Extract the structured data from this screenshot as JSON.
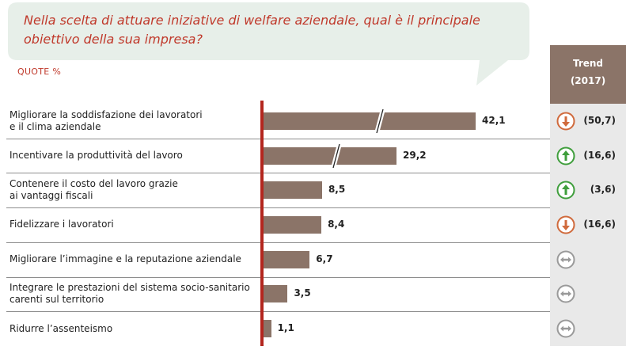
{
  "question": "Nella scelta di attuare iniziative di welfare aziendale, qual è il principale obiettivo della sua impresa?",
  "unit_label": "QUOTE %",
  "trend_header": {
    "line1": "Trend",
    "line2": "(2017)"
  },
  "colors": {
    "bar": "#8b7468",
    "axis": "#b3261e",
    "up": "#3f9e3c",
    "down": "#d06a3c",
    "neutral": "#9a9a9a",
    "bubble": "#e7efe9"
  },
  "chart_data": {
    "type": "bar",
    "orientation": "horizontal",
    "categories": [
      "Migliorare la soddisfazione dei lavoratori e il clima aziendale",
      "Incentivare la produttività del lavoro",
      "Contenere il costo del lavoro grazie ai vantaggi fiscali",
      "Fidelizzare i lavoratori",
      "Migliorare l’immagine e la reputazione aziendale",
      "Integrare le prestazioni del sistema socio-sanitario carenti sul territorio",
      "Ridurre l’assenteismo"
    ],
    "values": [
      42.1,
      29.2,
      8.5,
      8.4,
      6.7,
      3.5,
      1.1
    ],
    "value_labels": [
      "42,1",
      "29,2",
      "8,5",
      "8,4",
      "6,7",
      "3,5",
      "1,1"
    ],
    "broken_bars": [
      true,
      true,
      false,
      false,
      false,
      false,
      false
    ],
    "trend": [
      {
        "direction": "down",
        "value": "(50,7)"
      },
      {
        "direction": "up",
        "value": "(16,6)"
      },
      {
        "direction": "up",
        "value": "(3,6)"
      },
      {
        "direction": "down",
        "value": "(16,6)"
      },
      {
        "direction": "neutral",
        "value": ""
      },
      {
        "direction": "neutral",
        "value": ""
      },
      {
        "direction": "neutral",
        "value": ""
      }
    ]
  },
  "rows": [
    {
      "line1": "Migliorare la soddisfazione dei lavoratori",
      "line2": "e il clima aziendale"
    },
    {
      "line1": "Incentivare la produttività del lavoro",
      "line2": ""
    },
    {
      "line1": "Contenere il costo del lavoro grazie",
      "line2": "ai vantaggi fiscali"
    },
    {
      "line1": "Fidelizzare i lavoratori",
      "line2": ""
    },
    {
      "line1": "Migliorare l’immagine e la reputazione aziendale",
      "line2": ""
    },
    {
      "line1": "Integrare le prestazioni del sistema socio-sanitario",
      "line2": "carenti sul territorio"
    },
    {
      "line1": "Ridurre l’assenteismo",
      "line2": ""
    }
  ]
}
